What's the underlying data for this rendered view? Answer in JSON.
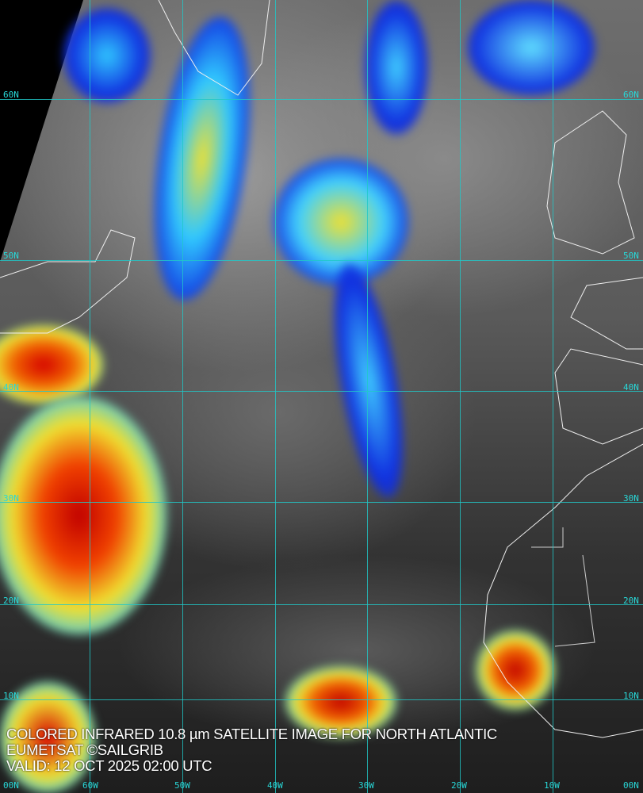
{
  "caption": {
    "line1": "COLORED INFRARED 10.8 µm SATELLITE IMAGE FOR NORTH ATLANTIC",
    "line2": "EUMETSAT ©SAILGRIB",
    "line3": "VALID:  12 OCT 2025 02:00 UTC"
  },
  "grid": {
    "color": "#21c8c8",
    "latitudes": [
      "60N",
      "50N",
      "40N",
      "30N",
      "20N",
      "10N",
      "00N"
    ],
    "longitudes": [
      "60W",
      "50W",
      "40W",
      "30W",
      "20W",
      "10W",
      "00N"
    ]
  },
  "colors": {
    "cold_top_red": "#d40000",
    "yellow": "#f0e020",
    "cyan": "#20d0ff",
    "blue": "#0020e0"
  }
}
